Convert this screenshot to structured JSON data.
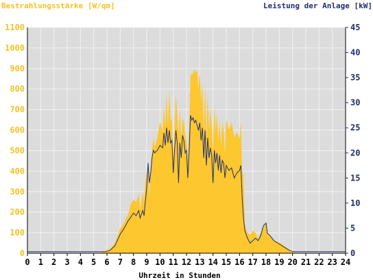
{
  "chart_data": {
    "type": "area",
    "title_left": "Bestrahlungsstärke [W/qm]",
    "title_right": "Leistung der Anlage [kW]",
    "xlabel": "Uhrzeit in Stunden",
    "xlim": [
      0,
      24
    ],
    "x_ticks": [
      "0",
      "1",
      "2",
      "3",
      "4",
      "5",
      "6",
      "7",
      "8",
      "9",
      "10",
      "11",
      "12",
      "13",
      "14",
      "15",
      "16",
      "17",
      "18",
      "19",
      "20",
      "21",
      "22",
      "23",
      "24"
    ],
    "y_left": {
      "lim": [
        0,
        1100
      ],
      "ticks": [
        "0",
        "100",
        "200",
        "300",
        "400",
        "500",
        "600",
        "700",
        "800",
        "900",
        "1000",
        "1100"
      ]
    },
    "y_right": {
      "lim": [
        0,
        45
      ],
      "ticks": [
        "0",
        "5",
        "10",
        "15",
        "20",
        "25",
        "30",
        "35",
        "40",
        "45"
      ]
    },
    "grid": true,
    "colors": {
      "irradiance": "#fcc72f",
      "power": "#1f2f6e",
      "plot_bg": "#dcdcdc",
      "grid": "#f2f2f2"
    },
    "series": [
      {
        "name": "Bestrahlungsstärke [W/qm]",
        "axis": "left",
        "x": [
          0,
          5.5,
          6.0,
          6.3,
          6.6,
          7.0,
          7.3,
          7.6,
          7.8,
          8.0,
          8.2,
          8.4,
          8.5,
          8.7,
          8.8,
          8.9,
          9.0,
          9.1,
          9.2,
          9.3,
          9.4,
          9.5,
          9.6,
          9.8,
          10.0,
          10.2,
          10.3,
          10.4,
          10.5,
          10.6,
          10.7,
          10.8,
          10.9,
          11.0,
          11.1,
          11.2,
          11.3,
          11.4,
          11.5,
          11.6,
          11.7,
          11.8,
          11.9,
          12.0,
          12.1,
          12.2,
          12.3,
          12.4,
          12.5,
          12.6,
          12.7,
          12.8,
          12.9,
          13.0,
          13.1,
          13.2,
          13.3,
          13.4,
          13.5,
          13.6,
          13.7,
          13.8,
          13.9,
          14.0,
          14.1,
          14.2,
          14.3,
          14.4,
          14.5,
          14.6,
          14.7,
          14.8,
          14.9,
          15.0,
          15.2,
          15.4,
          15.6,
          15.8,
          16.0,
          16.1,
          16.2,
          16.3,
          16.4,
          16.6,
          16.8,
          17.0,
          17.2,
          17.4,
          17.6,
          17.8,
          18.0,
          18.1,
          18.3,
          18.6,
          18.9,
          19.2,
          19.5,
          19.8,
          20.1,
          20.5,
          21,
          24
        ],
        "values": [
          0,
          0,
          15,
          25,
          50,
          120,
          150,
          190,
          240,
          260,
          250,
          290,
          210,
          300,
          250,
          350,
          390,
          430,
          280,
          400,
          500,
          560,
          520,
          560,
          640,
          590,
          720,
          620,
          780,
          620,
          790,
          640,
          660,
          460,
          610,
          770,
          680,
          580,
          700,
          560,
          660,
          640,
          580,
          550,
          440,
          600,
          860,
          880,
          870,
          900,
          880,
          890,
          800,
          880,
          740,
          830,
          600,
          820,
          560,
          780,
          600,
          700,
          620,
          500,
          720,
          600,
          680,
          540,
          650,
          520,
          640,
          600,
          480,
          650,
          600,
          640,
          560,
          590,
          560,
          640,
          400,
          380,
          140,
          100,
          90,
          110,
          100,
          70,
          100,
          130,
          155,
          100,
          90,
          60,
          55,
          45,
          30,
          15,
          5,
          0,
          0,
          0
        ]
      },
      {
        "name": "Leistung der Anlage [kW]",
        "axis": "right",
        "x": [
          0,
          5.8,
          6.2,
          6.6,
          7.0,
          7.3,
          7.6,
          7.8,
          8.0,
          8.2,
          8.4,
          8.5,
          8.7,
          8.8,
          8.9,
          9.0,
          9.1,
          9.2,
          9.3,
          9.4,
          9.5,
          9.6,
          9.8,
          10.0,
          10.2,
          10.3,
          10.4,
          10.5,
          10.6,
          10.7,
          10.8,
          10.9,
          11.0,
          11.1,
          11.2,
          11.3,
          11.4,
          11.5,
          11.6,
          11.7,
          11.8,
          11.9,
          12.0,
          12.1,
          12.2,
          12.3,
          12.4,
          12.5,
          12.6,
          12.7,
          12.8,
          12.9,
          13.0,
          13.1,
          13.2,
          13.3,
          13.4,
          13.5,
          13.6,
          13.7,
          13.8,
          13.9,
          14.0,
          14.1,
          14.2,
          14.3,
          14.4,
          14.5,
          14.6,
          14.7,
          14.8,
          14.9,
          15.0,
          15.2,
          15.4,
          15.6,
          15.8,
          16.0,
          16.1,
          16.2,
          16.3,
          16.4,
          16.6,
          16.8,
          17.0,
          17.2,
          17.4,
          17.6,
          17.8,
          18.0,
          18.1,
          18.3,
          18.6,
          18.9,
          19.2,
          19.5,
          19.8,
          20.1,
          20.5,
          24
        ],
        "values": [
          0.3,
          0.3,
          0.5,
          1.5,
          3.8,
          5.0,
          6.5,
          7.2,
          8.0,
          7.5,
          8.5,
          7.0,
          8.5,
          7.5,
          10.5,
          13.0,
          18.0,
          14.0,
          16.0,
          19.0,
          20.5,
          20.0,
          20.5,
          21.5,
          21.0,
          24.0,
          21.5,
          25.0,
          22.0,
          24.5,
          22.0,
          22.5,
          16.0,
          20.5,
          24.5,
          22.0,
          14.0,
          22.0,
          19.0,
          23.5,
          22.5,
          20.0,
          20.5,
          15.0,
          20.5,
          27.5,
          26.5,
          27.0,
          26.0,
          26.5,
          25.5,
          24.5,
          26.0,
          22.5,
          25.0,
          19.0,
          24.5,
          17.5,
          23.0,
          19.0,
          21.0,
          19.5,
          14.0,
          20.5,
          18.0,
          20.0,
          16.5,
          19.5,
          16.0,
          18.5,
          18.0,
          15.0,
          17.5,
          16.5,
          17.0,
          15.0,
          16.0,
          16.5,
          17.5,
          11.0,
          7.0,
          4.5,
          3.0,
          2.0,
          2.5,
          3.0,
          2.5,
          3.5,
          5.5,
          6.0,
          4.0,
          3.5,
          2.5,
          2.0,
          1.5,
          1.0,
          0.5,
          0.3,
          0.3,
          0.3
        ]
      }
    ]
  }
}
